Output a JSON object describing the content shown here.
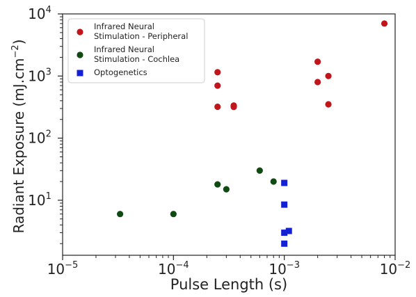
{
  "chart_data": {
    "type": "scatter",
    "title": "",
    "xlabel": "Pulse Length (s)",
    "ylabel_text": "Radiant Exposure (mJ.cm",
    "ylabel_sup": "−2",
    "ylabel_close": ")",
    "x_scale": "log",
    "y_scale": "log",
    "xlim": [
      1e-05,
      0.01
    ],
    "ylim": [
      1.3,
      10000
    ],
    "grid": false,
    "legend_position": "top-left",
    "x_ticks": [
      {
        "value": 1e-05,
        "base": "10",
        "exp": "−5"
      },
      {
        "value": 0.0001,
        "base": "10",
        "exp": "−4"
      },
      {
        "value": 0.001,
        "base": "10",
        "exp": "−3"
      },
      {
        "value": 0.01,
        "base": "10",
        "exp": "−2"
      }
    ],
    "y_ticks": [
      {
        "value": 10,
        "base": "10",
        "exp": "1"
      },
      {
        "value": 100,
        "base": "10",
        "exp": "2"
      },
      {
        "value": 1000,
        "base": "10",
        "exp": "3"
      },
      {
        "value": 10000,
        "base": "10",
        "exp": "4"
      }
    ],
    "series": [
      {
        "name": "Infrared Neural Stimulation - Peripheral",
        "legend_lines": [
          "Infrared Neural",
          "Stimulation - Peripheral"
        ],
        "marker": "circle",
        "color": "#c0151b",
        "points": [
          {
            "x": 0.00025,
            "y": 1150
          },
          {
            "x": 0.00025,
            "y": 700
          },
          {
            "x": 0.00025,
            "y": 320
          },
          {
            "x": 0.00035,
            "y": 335
          },
          {
            "x": 0.00035,
            "y": 318
          },
          {
            "x": 0.002,
            "y": 1700
          },
          {
            "x": 0.002,
            "y": 800
          },
          {
            "x": 0.0025,
            "y": 1000
          },
          {
            "x": 0.0025,
            "y": 350
          },
          {
            "x": 0.008,
            "y": 7000
          }
        ]
      },
      {
        "name": "Infrared Neural Stimulation - Cochlea",
        "legend_lines": [
          "Infrared Neural",
          "Stimulation - Cochlea"
        ],
        "marker": "circle",
        "color": "#0e4a12",
        "points": [
          {
            "x": 3.3e-05,
            "y": 6
          },
          {
            "x": 0.0001,
            "y": 6
          },
          {
            "x": 0.00025,
            "y": 18
          },
          {
            "x": 0.0003,
            "y": 15
          },
          {
            "x": 0.0006,
            "y": 30
          },
          {
            "x": 0.0008,
            "y": 20
          }
        ]
      },
      {
        "name": "Optogenetics",
        "legend_lines": [
          "Optogenetics"
        ],
        "marker": "square",
        "color": "#1420d4",
        "points": [
          {
            "x": 0.001,
            "y": 19
          },
          {
            "x": 0.001,
            "y": 8.5
          },
          {
            "x": 0.001,
            "y": 3
          },
          {
            "x": 0.0011,
            "y": 3.2
          },
          {
            "x": 0.001,
            "y": 2
          }
        ]
      }
    ]
  }
}
